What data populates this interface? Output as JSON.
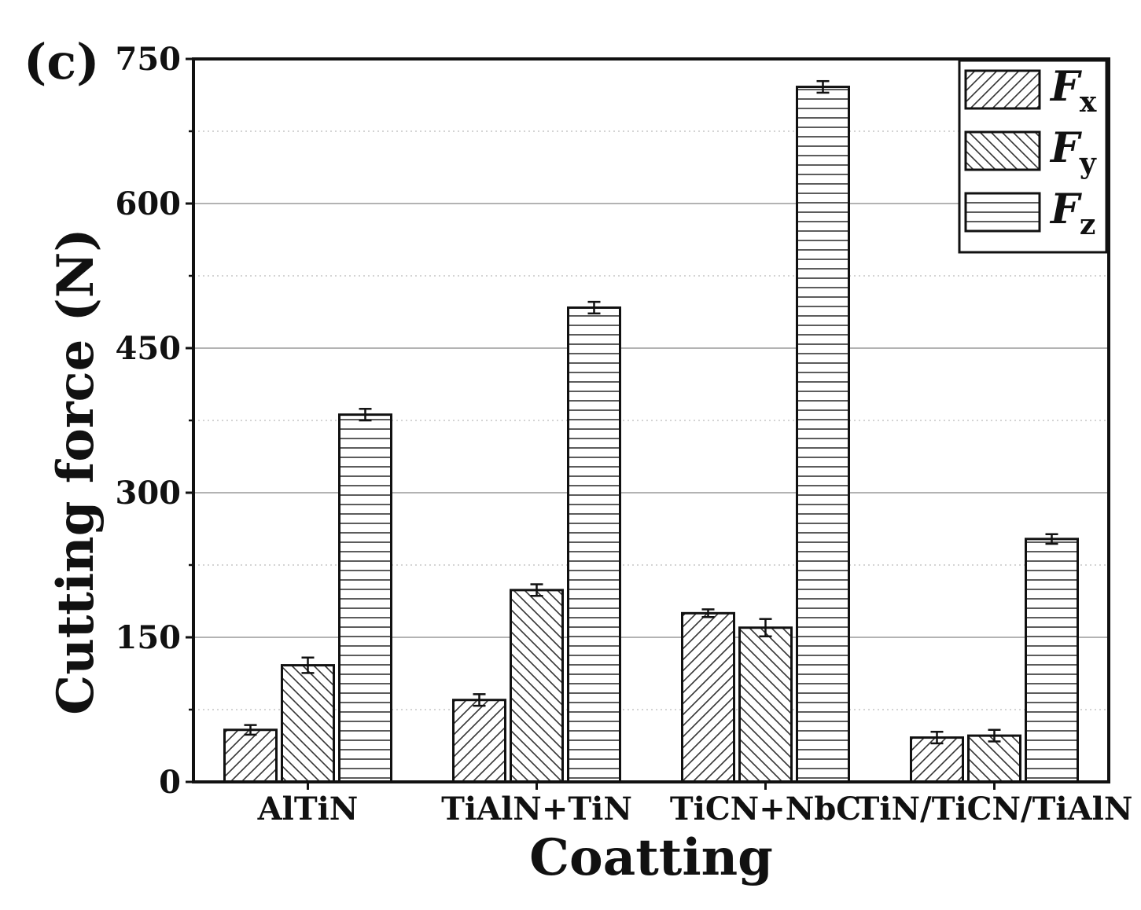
{
  "panel_label": "(c)",
  "chart_data": {
    "type": "bar",
    "title": "",
    "xlabel": "Coatting",
    "ylabel": "Cutting force (N)",
    "ylim": [
      0,
      750
    ],
    "yticks": [
      0,
      150,
      300,
      450,
      600,
      750
    ],
    "grid": true,
    "legend_position": "top-right",
    "categories": [
      "AlTiN",
      "TiAlN+TiN",
      "TiCN+NbC",
      "TiN/TiCN/TiAlN"
    ],
    "series": [
      {
        "name": "Fx",
        "letter": "F",
        "subscript": "x",
        "pattern": "diag-forward",
        "values": [
          54,
          85,
          175,
          46
        ],
        "errors": [
          5,
          6,
          4,
          6
        ]
      },
      {
        "name": "Fy",
        "letter": "F",
        "subscript": "y",
        "pattern": "diag-back",
        "values": [
          121,
          199,
          160,
          48
        ],
        "errors": [
          8,
          6,
          9,
          6
        ]
      },
      {
        "name": "Fz",
        "letter": "F",
        "subscript": "z",
        "pattern": "horizontal",
        "values": [
          381,
          492,
          721,
          252
        ],
        "errors": [
          6,
          6,
          6,
          5
        ]
      }
    ]
  }
}
